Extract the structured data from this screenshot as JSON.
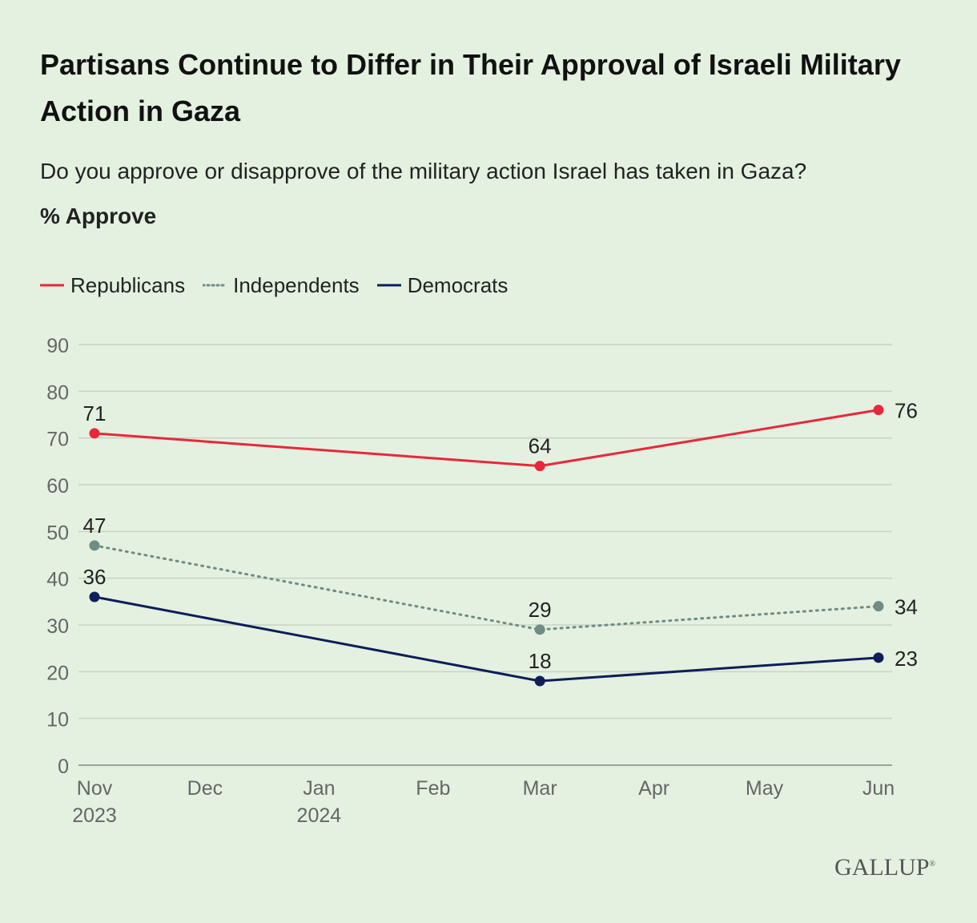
{
  "header": {
    "title": "Partisans Continue to Differ in Their Approval of Israeli Military Action in Gaza",
    "subtitle": "Do you approve or disapprove of the military action Israel has taken in Gaza?",
    "measure": "% Approve"
  },
  "footer": {
    "logo": "GALLUP"
  },
  "chart_data": {
    "type": "line",
    "title": "Partisans Continue to Differ in Their Approval of Israeli Military Action in Gaza",
    "subtitle": "Do you approve or disapprove of the military action Israel has taken in Gaza?",
    "ylabel": "% Approve",
    "xlabel": "",
    "ylim": [
      0,
      90
    ],
    "yticks": [
      0,
      10,
      20,
      30,
      40,
      50,
      60,
      70,
      80,
      90
    ],
    "x_range": [
      "2023-11-01",
      "2024-06-01"
    ],
    "xticks": [
      {
        "date": "2023-11-01",
        "label": "Nov",
        "sub": "2023"
      },
      {
        "date": "2023-12-01",
        "label": "Dec",
        "sub": ""
      },
      {
        "date": "2024-01-01",
        "label": "Jan",
        "sub": "2024"
      },
      {
        "date": "2024-02-01",
        "label": "Feb",
        "sub": ""
      },
      {
        "date": "2024-03-01",
        "label": "Mar",
        "sub": ""
      },
      {
        "date": "2024-04-01",
        "label": "Apr",
        "sub": ""
      },
      {
        "date": "2024-05-01",
        "label": "May",
        "sub": ""
      },
      {
        "date": "2024-06-01",
        "label": "Jun",
        "sub": ""
      }
    ],
    "grid": true,
    "legend_position": "top-left",
    "series": [
      {
        "name": "Republicans",
        "color": "#e8283a",
        "style": "solid",
        "points": [
          {
            "x": "2023-11-01",
            "y": 71,
            "label_pos": "above"
          },
          {
            "x": "2024-03-01",
            "y": 64,
            "label_pos": "above"
          },
          {
            "x": "2024-06-01",
            "y": 76,
            "label_pos": "right"
          }
        ]
      },
      {
        "name": "Independents",
        "color": "#6f8c85",
        "style": "dotted",
        "points": [
          {
            "x": "2023-11-01",
            "y": 47,
            "label_pos": "above"
          },
          {
            "x": "2024-03-01",
            "y": 29,
            "label_pos": "above"
          },
          {
            "x": "2024-06-01",
            "y": 34,
            "label_pos": "right"
          }
        ]
      },
      {
        "name": "Democrats",
        "color": "#0e1e5a",
        "style": "solid",
        "points": [
          {
            "x": "2023-11-01",
            "y": 36,
            "label_pos": "above"
          },
          {
            "x": "2024-03-01",
            "y": 18,
            "label_pos": "above"
          },
          {
            "x": "2024-06-01",
            "y": 23,
            "label_pos": "right"
          }
        ]
      }
    ]
  }
}
